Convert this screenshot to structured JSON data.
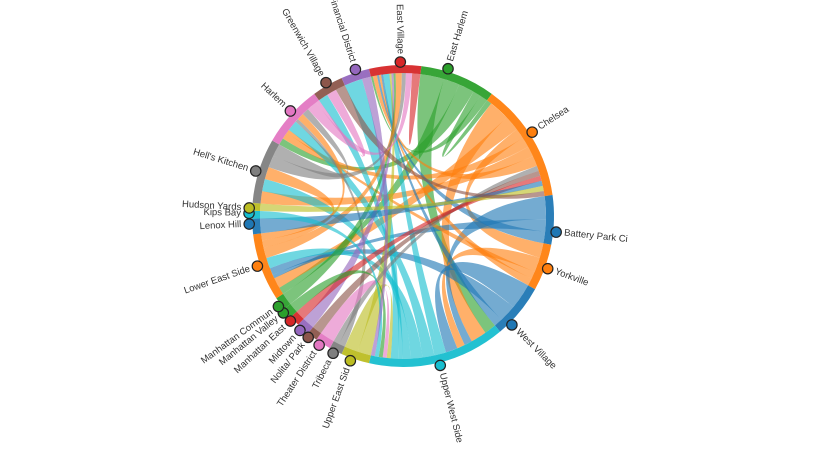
{
  "chart_data": {
    "type": "chord",
    "title": "",
    "nodes": [
      {
        "name": "East Harlem",
        "color": "#2ca02c"
      },
      {
        "name": "Chelsea",
        "color": "#ff7f0e"
      },
      {
        "name": "Battery Park City",
        "display": "Battery Park Ci",
        "color": "#1f77b4"
      },
      {
        "name": "Yorkville",
        "color": "#ff7f0e"
      },
      {
        "name": "West Village",
        "color": "#1f77b4"
      },
      {
        "name": "Upper West Side",
        "color": "#17becf"
      },
      {
        "name": "Upper East Side",
        "display": "Upper East Sid",
        "color": "#bcbd22"
      },
      {
        "name": "Tribeca",
        "color": "#7f7f7f"
      },
      {
        "name": "Theater District",
        "color": "#e377c2"
      },
      {
        "name": "Nolita",
        "display": "Nolita/ Park",
        "color": "#8c564b"
      },
      {
        "name": "Midtown",
        "color": "#9467bd"
      },
      {
        "name": "Manhattan East",
        "color": "#d62728"
      },
      {
        "name": "Manhattan Valley",
        "color": "#2ca02c"
      },
      {
        "name": "Manhattan Community",
        "display": "Manhattan Commun",
        "color": "#2ca02c"
      },
      {
        "name": "Lower East Side",
        "color": "#ff7f0e"
      },
      {
        "name": "Lenox Hill",
        "color": "#1f77b4"
      },
      {
        "name": "Kips Bay",
        "color": "#17becf"
      },
      {
        "name": "Hudson Yards",
        "color": "#bcbd22"
      },
      {
        "name": "Hell's Kitchen",
        "color": "#7f7f7f"
      },
      {
        "name": "Harlem",
        "color": "#e377c2"
      },
      {
        "name": "Greenwich Village",
        "color": "#8c564b"
      },
      {
        "name": "Financial District",
        "color": "#9467bd"
      },
      {
        "name": "East Village",
        "color": "#d62728"
      }
    ],
    "node_angles_deg": [
      17,
      57,
      96,
      110,
      135,
      166,
      200,
      207,
      213,
      218,
      222,
      227,
      231,
      234,
      251,
      267,
      271,
      273,
      287,
      313,
      330,
      342,
      359
    ],
    "group_spans": [
      [
        7,
        36
      ],
      [
        36,
        82
      ],
      [
        82,
        101
      ],
      [
        101,
        119
      ],
      [
        119,
        140
      ],
      [
        140,
        193
      ],
      [
        193,
        204
      ],
      [
        204,
        209
      ],
      [
        209,
        215
      ],
      [
        215,
        219
      ],
      [
        219,
        224
      ],
      [
        224,
        228
      ],
      [
        228,
        232
      ],
      [
        232,
        237
      ],
      [
        237,
        263
      ],
      [
        263,
        269
      ],
      [
        269,
        272
      ],
      [
        272,
        275
      ],
      [
        275,
        300
      ],
      [
        300,
        324
      ],
      [
        324,
        336
      ],
      [
        336,
        347
      ],
      [
        347,
        367
      ]
    ],
    "flows": [
      [
        0,
        5,
        3
      ],
      [
        0,
        14,
        2
      ],
      [
        0,
        19,
        2
      ],
      [
        0,
        1,
        1
      ],
      [
        0,
        22,
        1
      ],
      [
        1,
        5,
        4
      ],
      [
        1,
        14,
        3
      ],
      [
        1,
        3,
        2
      ],
      [
        1,
        19,
        2
      ],
      [
        1,
        18,
        2
      ],
      [
        1,
        22,
        2
      ],
      [
        2,
        5,
        2
      ],
      [
        2,
        14,
        1
      ],
      [
        2,
        22,
        1
      ],
      [
        3,
        5,
        2
      ],
      [
        3,
        19,
        1
      ],
      [
        3,
        22,
        1
      ],
      [
        4,
        5,
        3
      ],
      [
        4,
        14,
        2
      ],
      [
        4,
        22,
        1
      ],
      [
        5,
        22,
        3
      ],
      [
        5,
        19,
        3
      ],
      [
        5,
        14,
        3
      ],
      [
        5,
        18,
        2
      ],
      [
        5,
        20,
        1
      ],
      [
        5,
        21,
        2
      ],
      [
        6,
        22,
        1
      ],
      [
        6,
        5,
        1
      ],
      [
        7,
        19,
        1
      ],
      [
        7,
        1,
        1
      ],
      [
        8,
        5,
        1
      ],
      [
        9,
        1,
        1
      ],
      [
        10,
        22,
        1
      ],
      [
        11,
        1,
        1
      ],
      [
        12,
        5,
        1
      ],
      [
        13,
        22,
        1
      ],
      [
        14,
        22,
        3
      ],
      [
        14,
        19,
        2
      ],
      [
        14,
        18,
        2
      ],
      [
        15,
        1,
        1
      ],
      [
        16,
        5,
        1
      ],
      [
        17,
        1,
        1
      ],
      [
        18,
        22,
        2
      ],
      [
        18,
        19,
        2
      ],
      [
        19,
        22,
        3
      ],
      [
        19,
        20,
        1
      ],
      [
        20,
        1,
        1
      ],
      [
        21,
        5,
        1
      ],
      [
        22,
        22,
        2
      ]
    ]
  }
}
